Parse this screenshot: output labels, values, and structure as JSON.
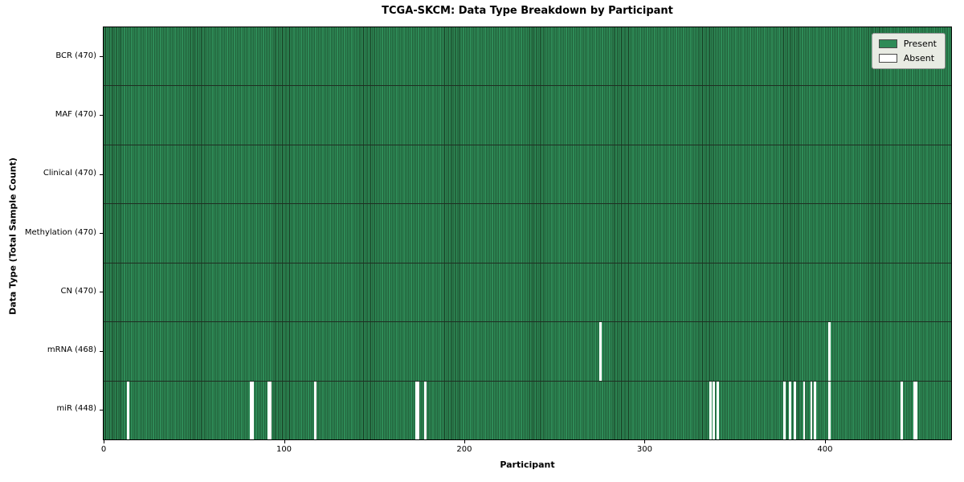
{
  "title": "TCGA-SKCM: Data Type Breakdown by Participant",
  "chart_data": {
    "type": "heatmap",
    "title": "TCGA-SKCM: Data Type Breakdown by Participant",
    "xlabel": "Participant",
    "ylabel": "Data Type (Total Sample Count)",
    "n_participants": 470,
    "x_ticks": [
      0,
      100,
      200,
      300,
      400
    ],
    "grid": false,
    "legend_position": "upper right",
    "legend": [
      {
        "label": "Present",
        "color": "#2e8b57"
      },
      {
        "label": "Absent",
        "color": "#ffffff"
      }
    ],
    "rows": [
      {
        "data_type": "BCR",
        "label": "BCR (470)",
        "total": 470,
        "present": 470,
        "absent_participants": []
      },
      {
        "data_type": "MAF",
        "label": "MAF (470)",
        "total": 470,
        "present": 470,
        "absent_participants": []
      },
      {
        "data_type": "Clinical",
        "label": "Clinical (470)",
        "total": 470,
        "present": 470,
        "absent_participants": []
      },
      {
        "data_type": "Methylation",
        "label": "Methylation (470)",
        "total": 470,
        "present": 470,
        "absent_participants": []
      },
      {
        "data_type": "CN",
        "label": "CN (470)",
        "total": 470,
        "present": 470,
        "absent_participants": []
      },
      {
        "data_type": "mRNA",
        "label": "mRNA (468)",
        "total": 470,
        "present": 468,
        "absent_participants": [
          275,
          402
        ]
      },
      {
        "data_type": "miR",
        "label": "miR (448)",
        "total": 470,
        "present": 448,
        "absent_participants": [
          13,
          81,
          82,
          91,
          92,
          117,
          173,
          174,
          178,
          336,
          338,
          340,
          377,
          380,
          383,
          388,
          392,
          394,
          402,
          442,
          449,
          450
        ]
      }
    ],
    "colors": {
      "present": "#2e8b57",
      "absent": "#ffffff",
      "bar_edge": "#16381f",
      "row_separator": "#1f2e22",
      "axes_edge": "#000000",
      "legend_bg": "#e8ebe3",
      "legend_border": "#9a9a9a"
    }
  }
}
